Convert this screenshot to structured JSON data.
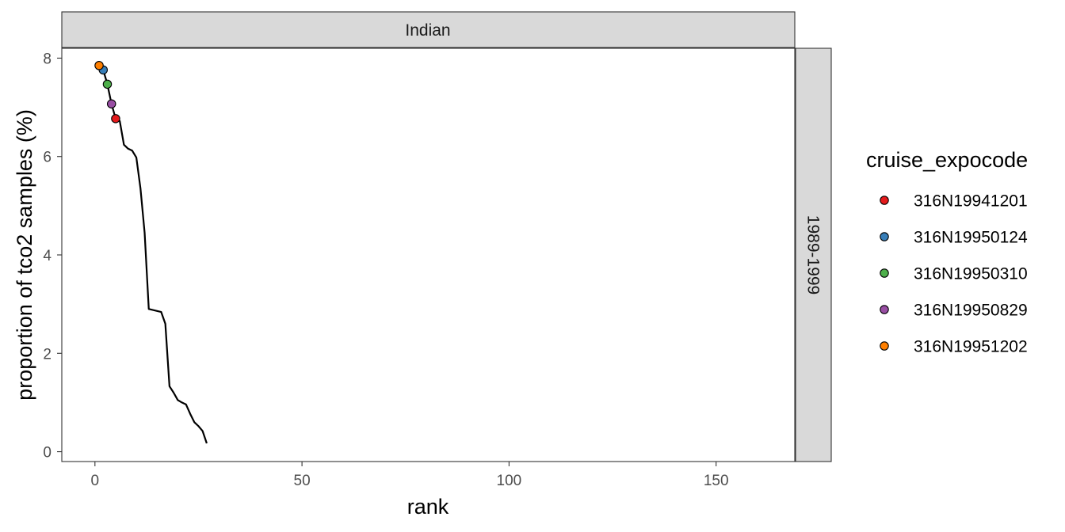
{
  "chart_data": {
    "type": "line",
    "facet": {
      "col_label": "Indian",
      "row_label": "1989-1999"
    },
    "xlabel": "rank",
    "ylabel": "proportion of tco2 samples (%)",
    "xlim": [
      -8,
      169
    ],
    "ylim": [
      -0.2,
      8.2
    ],
    "x_ticks": [
      0,
      50,
      100,
      150
    ],
    "y_ticks": [
      0,
      2,
      4,
      6,
      8
    ],
    "grid": false,
    "legend": {
      "title": "cruise_expocode",
      "placement": "right"
    },
    "line": {
      "color": "#000000",
      "x": [
        1,
        2,
        3,
        4,
        5,
        6,
        7,
        8,
        9,
        10,
        11,
        12,
        13,
        14,
        15,
        16,
        17,
        18,
        19,
        20,
        21,
        22,
        23,
        24,
        25,
        26,
        27
      ],
      "y": [
        7.85,
        7.76,
        7.47,
        7.07,
        6.77,
        6.72,
        6.24,
        6.16,
        6.12,
        5.98,
        5.35,
        4.45,
        2.9,
        2.88,
        2.86,
        2.84,
        2.6,
        1.33,
        1.2,
        1.05,
        1.0,
        0.96,
        0.77,
        0.6,
        0.52,
        0.42,
        0.17
      ]
    },
    "series": [
      {
        "name": "316N19941201",
        "color": "#E41A1C",
        "x": 5,
        "y": 6.77
      },
      {
        "name": "316N19950124",
        "color": "#377EB8",
        "x": 2,
        "y": 7.76
      },
      {
        "name": "316N19950310",
        "color": "#4DAF4A",
        "x": 3,
        "y": 7.47
      },
      {
        "name": "316N19950829",
        "color": "#984EA3",
        "x": 4,
        "y": 7.07
      },
      {
        "name": "316N19951202",
        "color": "#FF7F00",
        "x": 1,
        "y": 7.85
      }
    ]
  }
}
